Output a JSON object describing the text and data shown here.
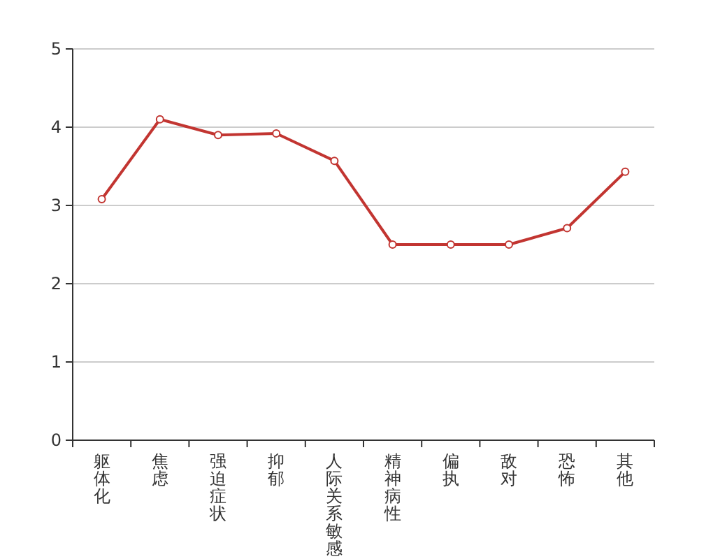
{
  "chart_data": {
    "type": "line",
    "categories": [
      "躯体化",
      "焦虑",
      "强迫症状",
      "抑郁",
      "人际关系敏感",
      "精神病性",
      "偏执",
      "敌对",
      "恐怖",
      "其他"
    ],
    "series": [
      {
        "color": "#c23531",
        "values": [
          3.08,
          4.1,
          3.9,
          3.92,
          3.57,
          2.5,
          2.5,
          2.5,
          2.71,
          3.43
        ]
      }
    ],
    "ylim": [
      0,
      5
    ],
    "yticks": [
      0,
      1,
      2,
      3,
      4,
      5
    ],
    "grid": "y",
    "marker": "circle",
    "line_style": "solid"
  }
}
